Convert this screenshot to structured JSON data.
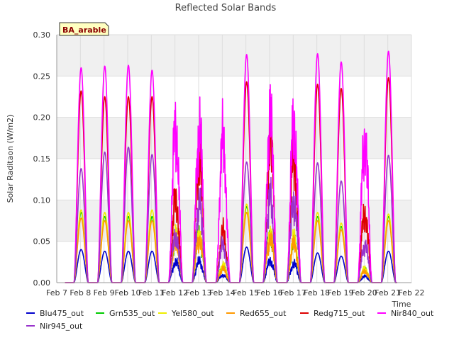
{
  "chart_data": {
    "type": "line",
    "title": "Reflected Solar Bands",
    "badge": "BA_arable",
    "xlabel": "Time",
    "ylabel": "Solar Raditaon (W/m2)",
    "xlim": [
      7,
      22
    ],
    "ylim": [
      0,
      0.3
    ],
    "x_ticks": [
      7,
      8,
      9,
      10,
      11,
      12,
      13,
      14,
      15,
      16,
      17,
      18,
      19,
      20,
      21,
      22
    ],
    "x_tick_labels": [
      "Feb 7",
      "Feb 8",
      "Feb 9",
      "Feb 10",
      "Feb 11",
      "Feb 12",
      "Feb 13",
      "Feb 14",
      "Feb 15",
      "Feb 16",
      "Feb 17",
      "Feb 18",
      "Feb 19",
      "Feb 20",
      "Feb 21",
      "Feb 22"
    ],
    "y_ticks": [
      0.0,
      0.05,
      0.1,
      0.15,
      0.2,
      0.25,
      0.3
    ],
    "y_tick_labels": [
      "0.00",
      "0.05",
      "0.10",
      "0.15",
      "0.20",
      "0.25",
      "0.30"
    ],
    "grid": true,
    "legend_position": "bottom",
    "day_centers": [
      8.03,
      9.03,
      10.03,
      11.03,
      12.03,
      13.03,
      14.03,
      15.03,
      16.03,
      17.03,
      18.03,
      19.03,
      20.03,
      21.03
    ],
    "series": [
      {
        "name": "Blu475_out",
        "color": "#0000cc",
        "peaks": [
          0.04,
          0.038,
          0.038,
          0.038,
          0.033,
          0.034,
          0.012,
          0.043,
          0.035,
          0.03,
          0.036,
          0.032,
          0.01,
          0.038
        ]
      },
      {
        "name": "Grn535_out",
        "color": "#00cc00",
        "peaks": [
          0.085,
          0.08,
          0.08,
          0.08,
          0.07,
          0.075,
          0.025,
          0.092,
          0.075,
          0.065,
          0.08,
          0.068,
          0.02,
          0.08
        ]
      },
      {
        "name": "Yel580_out",
        "color": "#eeee00",
        "peaks": [
          0.088,
          0.085,
          0.085,
          0.088,
          0.075,
          0.08,
          0.028,
          0.095,
          0.08,
          0.07,
          0.085,
          0.072,
          0.022,
          0.083
        ]
      },
      {
        "name": "Red655_out",
        "color": "#ff9900",
        "peaks": [
          0.078,
          0.075,
          0.075,
          0.075,
          0.065,
          0.07,
          0.022,
          0.085,
          0.07,
          0.062,
          0.075,
          0.064,
          0.018,
          0.075
        ]
      },
      {
        "name": "Redg715_out",
        "color": "#dd0000",
        "peaks": [
          0.232,
          0.225,
          0.225,
          0.225,
          0.13,
          0.2,
          0.08,
          0.243,
          0.228,
          0.2,
          0.24,
          0.235,
          0.11,
          0.248
        ]
      },
      {
        "name": "Nir840_out",
        "color": "#ff00ff",
        "peaks": [
          0.26,
          0.262,
          0.263,
          0.257,
          0.245,
          0.245,
          0.225,
          0.276,
          0.262,
          0.255,
          0.277,
          0.267,
          0.228,
          0.28
        ]
      },
      {
        "name": "Nir945_out",
        "color": "#9933cc",
        "peaks": [
          0.138,
          0.158,
          0.164,
          0.155,
          0.075,
          0.125,
          0.06,
          0.146,
          0.135,
          0.13,
          0.145,
          0.123,
          0.06,
          0.154
        ]
      }
    ]
  }
}
